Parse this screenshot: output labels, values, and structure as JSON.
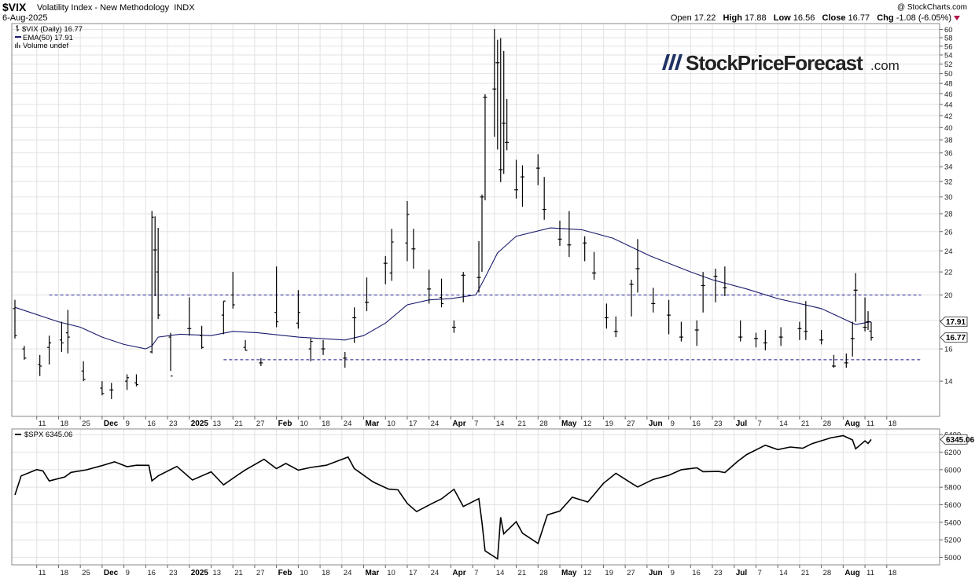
{
  "header": {
    "symbol": "$VIX",
    "name": "Volatility Index - New Methodology",
    "exchange": "INDX",
    "date": "6-Aug-2025",
    "credit": "@ StockCharts.com",
    "open_label": "Open",
    "open": "17.22",
    "high_label": "High",
    "high": "17.88",
    "low_label": "Low",
    "low": "16.56",
    "close_label": "Close",
    "close": "16.77",
    "chg_label": "Chg",
    "chg": "-1.08 (-6.05%)"
  },
  "legend": {
    "vix": "$VIX (Daily) 16.77",
    "ema": "EMA(50) 17.91",
    "volume": "Volume undef",
    "spx": "$SPX 6345.06"
  },
  "watermark": {
    "main": "StockPriceForecast",
    "suffix": ".com"
  },
  "colors": {
    "ema": "#1a1a6e",
    "bars": "#000000",
    "dashed": "#1a1a8e",
    "grid": "#e2e2e2",
    "down_triangle": "#b0154a"
  },
  "chart_data": [
    {
      "type": "ohlc",
      "title": "$VIX (Daily) 16.77",
      "ylim": [
        12.5,
        60.5
      ],
      "y_scale": "log",
      "y_ticks": [
        14,
        16,
        18,
        20,
        22,
        24,
        26,
        28,
        30,
        32,
        34,
        36,
        38,
        40,
        42,
        44,
        46,
        48,
        50,
        52,
        54,
        56,
        58,
        60
      ],
      "price_labels": [
        "17.91",
        "16.77"
      ],
      "horizontal_lines": [
        {
          "name": "resistance",
          "value": 20.0,
          "from": "2024-11-15",
          "to": "2025-08-22"
        },
        {
          "name": "support",
          "value": 15.3,
          "from": "2025-01-10",
          "to": "2025-08-22"
        }
      ],
      "ema_values": [
        [
          "2024-11-04",
          19.0
        ],
        [
          "2024-11-18",
          17.9
        ],
        [
          "2024-11-25",
          17.5
        ],
        [
          "2024-12-02",
          16.8
        ],
        [
          "2024-12-09",
          16.3
        ],
        [
          "2024-12-16",
          16.0
        ],
        [
          "2024-12-18",
          16.2
        ],
        [
          "2024-12-20",
          16.8
        ],
        [
          "2024-12-27",
          17.0
        ],
        [
          "2025-01-06",
          16.9
        ],
        [
          "2025-01-13",
          17.2
        ],
        [
          "2025-01-21",
          17.1
        ],
        [
          "2025-02-03",
          16.8
        ],
        [
          "2025-02-18",
          16.6
        ],
        [
          "2025-02-24",
          16.9
        ],
        [
          "2025-03-03",
          17.8
        ],
        [
          "2025-03-10",
          19.2
        ],
        [
          "2025-03-17",
          19.6
        ],
        [
          "2025-03-24",
          19.7
        ],
        [
          "2025-04-01",
          20.0
        ],
        [
          "2025-04-04",
          21.5
        ],
        [
          "2025-04-08",
          23.8
        ],
        [
          "2025-04-14",
          25.5
        ],
        [
          "2025-04-25",
          26.4
        ],
        [
          "2025-05-05",
          26.2
        ],
        [
          "2025-05-15",
          25.3
        ],
        [
          "2025-05-27",
          23.5
        ],
        [
          "2025-06-09",
          22.0
        ],
        [
          "2025-06-16",
          21.3
        ],
        [
          "2025-06-27",
          20.5
        ],
        [
          "2025-07-07",
          19.7
        ],
        [
          "2025-07-21",
          18.9
        ],
        [
          "2025-08-01",
          17.7
        ],
        [
          "2025-08-06",
          17.91
        ]
      ],
      "ohlc_values": [
        [
          "2024-11-04",
          18.9,
          19.6,
          16.7,
          16.9
        ],
        [
          "2024-11-07",
          16.0,
          16.2,
          15.3,
          15.4
        ],
        [
          "2024-11-12",
          15.0,
          15.6,
          14.3,
          14.9
        ],
        [
          "2024-11-15",
          16.1,
          16.9,
          15.0,
          16.4
        ],
        [
          "2024-11-19",
          16.6,
          17.9,
          15.8,
          16.4
        ],
        [
          "2024-11-21",
          17.1,
          18.8,
          15.7,
          16.8
        ],
        [
          "2024-11-26",
          14.6,
          15.2,
          14.0,
          14.1
        ],
        [
          "2024-12-02",
          13.6,
          14.0,
          13.2,
          13.3
        ],
        [
          "2024-12-05",
          13.5,
          13.9,
          13.0,
          13.5
        ],
        [
          "2024-12-10",
          14.0,
          14.4,
          13.5,
          14.2
        ],
        [
          "2024-12-13",
          13.9,
          14.4,
          13.7,
          13.8
        ],
        [
          "2024-12-18",
          15.8,
          28.3,
          15.7,
          27.6
        ],
        [
          "2024-12-19",
          24.1,
          27.7,
          19.9,
          24.1
        ],
        [
          "2024-12-20",
          22.0,
          26.4,
          18.1,
          18.4
        ],
        [
          "2024-12-24",
          16.8,
          17.1,
          14.6,
          14.3
        ],
        [
          "2024-12-30",
          17.4,
          19.8,
          16.9,
          17.4
        ],
        [
          "2025-01-03",
          16.9,
          17.6,
          16.0,
          16.1
        ],
        [
          "2025-01-10",
          18.4,
          19.5,
          17.0,
          19.5
        ],
        [
          "2025-01-13",
          20.0,
          22.0,
          18.9,
          19.2
        ],
        [
          "2025-01-17",
          16.1,
          16.6,
          15.9,
          15.9
        ],
        [
          "2025-01-22",
          15.1,
          15.4,
          14.9,
          15.1
        ],
        [
          "2025-01-27",
          18.6,
          22.5,
          17.5,
          17.9
        ],
        [
          "2025-02-03",
          17.8,
          20.4,
          17.4,
          18.6
        ],
        [
          "2025-02-07",
          16.0,
          16.7,
          15.2,
          16.5
        ],
        [
          "2025-02-11",
          16.0,
          16.6,
          15.6,
          16.0
        ],
        [
          "2025-02-18",
          15.4,
          15.8,
          14.8,
          15.4
        ],
        [
          "2025-02-21",
          18.2,
          19.0,
          16.4,
          18.2
        ],
        [
          "2025-02-25",
          19.4,
          21.5,
          18.7,
          19.4
        ],
        [
          "2025-03-03",
          22.8,
          23.5,
          20.9,
          22.8
        ],
        [
          "2025-03-05",
          21.9,
          26.3,
          21.2,
          24.9
        ],
        [
          "2025-03-10",
          24.8,
          29.5,
          23.0,
          27.9
        ],
        [
          "2025-03-12",
          24.2,
          26.3,
          22.3,
          24.2
        ],
        [
          "2025-03-17",
          20.5,
          22.2,
          19.3,
          20.5
        ],
        [
          "2025-03-21",
          19.8,
          21.4,
          19.0,
          19.3
        ],
        [
          "2025-03-25",
          17.5,
          18.0,
          17.1,
          17.5
        ],
        [
          "2025-03-28",
          21.7,
          22.0,
          19.4,
          21.7
        ],
        [
          "2025-04-02",
          21.5,
          25.0,
          20.2,
          21.5
        ],
        [
          "2025-04-03",
          30.0,
          30.3,
          22.0,
          30.0
        ],
        [
          "2025-04-04",
          45.3,
          45.9,
          29.6,
          45.3
        ],
        [
          "2025-04-07",
          46.9,
          60.1,
          38.5,
          46.9
        ],
        [
          "2025-04-08",
          52.3,
          57.5,
          36.5,
          52.3
        ],
        [
          "2025-04-09",
          33.6,
          57.9,
          31.9,
          33.6
        ],
        [
          "2025-04-10",
          40.7,
          54.9,
          33.0,
          40.7
        ],
        [
          "2025-04-11",
          37.6,
          45.0,
          36.4,
          37.6
        ],
        [
          "2025-04-14",
          30.9,
          35.0,
          29.8,
          30.9
        ],
        [
          "2025-04-16",
          32.6,
          34.2,
          28.8,
          32.6
        ],
        [
          "2025-04-21",
          33.8,
          35.8,
          31.5,
          33.8
        ],
        [
          "2025-04-23",
          28.5,
          32.6,
          27.3,
          28.5
        ],
        [
          "2025-04-28",
          25.2,
          27.2,
          24.5,
          25.2
        ],
        [
          "2025-05-01",
          24.6,
          28.3,
          23.4,
          24.6
        ],
        [
          "2025-05-06",
          24.8,
          25.5,
          23.0,
          24.8
        ],
        [
          "2025-05-09",
          21.9,
          23.9,
          21.3,
          21.9
        ],
        [
          "2025-05-13",
          18.2,
          19.3,
          17.4,
          18.2
        ],
        [
          "2025-05-16",
          17.2,
          18.3,
          16.8,
          17.2
        ],
        [
          "2025-05-21",
          20.9,
          21.3,
          18.3,
          20.9
        ],
        [
          "2025-05-23",
          22.3,
          25.2,
          20.2,
          22.3
        ],
        [
          "2025-05-28",
          19.3,
          20.6,
          18.6,
          19.3
        ],
        [
          "2025-06-02",
          18.4,
          19.6,
          17.0,
          18.4
        ],
        [
          "2025-06-06",
          16.8,
          17.9,
          16.5,
          16.8
        ],
        [
          "2025-06-11",
          17.3,
          18.0,
          16.2,
          17.3
        ],
        [
          "2025-06-13",
          20.8,
          22.0,
          18.6,
          20.8
        ],
        [
          "2025-06-17",
          21.6,
          22.3,
          19.4,
          21.6
        ],
        [
          "2025-06-20",
          20.6,
          22.5,
          19.9,
          20.6
        ],
        [
          "2025-06-25",
          16.8,
          18.0,
          16.5,
          16.8
        ],
        [
          "2025-06-30",
          16.7,
          17.1,
          16.1,
          16.7
        ],
        [
          "2025-07-03",
          16.4,
          17.3,
          15.9,
          16.4
        ],
        [
          "2025-07-08",
          16.8,
          17.5,
          16.2,
          16.8
        ],
        [
          "2025-07-14",
          17.4,
          17.9,
          16.6,
          17.4
        ],
        [
          "2025-07-16",
          17.2,
          19.5,
          16.6,
          17.2
        ],
        [
          "2025-07-21",
          16.6,
          17.3,
          16.3,
          16.6
        ],
        [
          "2025-07-25",
          14.9,
          15.6,
          14.8,
          14.9
        ],
        [
          "2025-07-29",
          15.1,
          15.7,
          14.8,
          15.1
        ],
        [
          "2025-07-31",
          16.7,
          17.9,
          15.5,
          16.7
        ],
        [
          "2025-08-01",
          20.4,
          21.9,
          17.9,
          20.4
        ],
        [
          "2025-08-04",
          17.5,
          19.8,
          17.2,
          17.5
        ],
        [
          "2025-08-05",
          17.9,
          18.7,
          17.3,
          17.9
        ],
        [
          "2025-08-06",
          17.22,
          17.88,
          16.56,
          16.77
        ]
      ],
      "x_tick_labels": [
        "11",
        "18",
        "25",
        "Dec",
        "9",
        "16",
        "23",
        "2025",
        "13",
        "21",
        "27",
        "Feb",
        "10",
        "18",
        "24",
        "Mar",
        "10",
        "17",
        "24",
        "Apr",
        "7",
        "14",
        "21",
        "28",
        "May",
        "12",
        "19",
        "27",
        "Jun",
        "9",
        "16",
        "23",
        "Jul",
        "7",
        "14",
        "21",
        "28",
        "Aug",
        "11",
        "18"
      ]
    },
    {
      "type": "line",
      "title": "$SPX 6345.06",
      "ylim": [
        4950,
        6420
      ],
      "y_ticks": [
        5000,
        5200,
        5400,
        5600,
        5800,
        6000,
        6200,
        6400
      ],
      "price_label": "6345.06",
      "values": [
        [
          "2024-11-04",
          5712
        ],
        [
          "2024-11-06",
          5929
        ],
        [
          "2024-11-11",
          6001
        ],
        [
          "2024-11-13",
          5985
        ],
        [
          "2024-11-15",
          5871
        ],
        [
          "2024-11-20",
          5917
        ],
        [
          "2024-11-22",
          5969
        ],
        [
          "2024-11-27",
          5999
        ],
        [
          "2024-12-02",
          6047
        ],
        [
          "2024-12-06",
          6090
        ],
        [
          "2024-12-10",
          6035
        ],
        [
          "2024-12-13",
          6051
        ],
        [
          "2024-12-17",
          6050
        ],
        [
          "2024-12-18",
          5872
        ],
        [
          "2024-12-20",
          5930
        ],
        [
          "2024-12-26",
          6037
        ],
        [
          "2024-12-31",
          5882
        ],
        [
          "2025-01-06",
          5975
        ],
        [
          "2025-01-10",
          5827
        ],
        [
          "2025-01-15",
          5950
        ],
        [
          "2025-01-17",
          5997
        ],
        [
          "2025-01-23",
          6119
        ],
        [
          "2025-01-27",
          6012
        ],
        [
          "2025-01-30",
          6071
        ],
        [
          "2025-02-03",
          5995
        ],
        [
          "2025-02-07",
          6026
        ],
        [
          "2025-02-12",
          6051
        ],
        [
          "2025-02-19",
          6144
        ],
        [
          "2025-02-21",
          6013
        ],
        [
          "2025-02-27",
          5861
        ],
        [
          "2025-03-04",
          5778
        ],
        [
          "2025-03-07",
          5770
        ],
        [
          "2025-03-10",
          5614
        ],
        [
          "2025-03-13",
          5522
        ],
        [
          "2025-03-18",
          5615
        ],
        [
          "2025-03-21",
          5667
        ],
        [
          "2025-03-25",
          5776
        ],
        [
          "2025-03-28",
          5580
        ],
        [
          "2025-04-02",
          5670
        ],
        [
          "2025-04-03",
          5396
        ],
        [
          "2025-04-04",
          5074
        ],
        [
          "2025-04-08",
          4982
        ],
        [
          "2025-04-09",
          5457
        ],
        [
          "2025-04-10",
          5268
        ],
        [
          "2025-04-14",
          5406
        ],
        [
          "2025-04-16",
          5275
        ],
        [
          "2025-04-21",
          5158
        ],
        [
          "2025-04-24",
          5484
        ],
        [
          "2025-04-28",
          5528
        ],
        [
          "2025-05-02",
          5686
        ],
        [
          "2025-05-07",
          5631
        ],
        [
          "2025-05-12",
          5844
        ],
        [
          "2025-05-16",
          5958
        ],
        [
          "2025-05-21",
          5845
        ],
        [
          "2025-05-23",
          5802
        ],
        [
          "2025-05-28",
          5889
        ],
        [
          "2025-06-02",
          5936
        ],
        [
          "2025-06-06",
          6000
        ],
        [
          "2025-06-11",
          6022
        ],
        [
          "2025-06-13",
          5977
        ],
        [
          "2025-06-18",
          5980
        ],
        [
          "2025-06-20",
          5967
        ],
        [
          "2025-06-24",
          6092
        ],
        [
          "2025-06-27",
          6173
        ],
        [
          "2025-07-03",
          6279
        ],
        [
          "2025-07-07",
          6229
        ],
        [
          "2025-07-11",
          6259
        ],
        [
          "2025-07-15",
          6244
        ],
        [
          "2025-07-18",
          6297
        ],
        [
          "2025-07-24",
          6363
        ],
        [
          "2025-07-28",
          6389
        ],
        [
          "2025-07-31",
          6339
        ],
        [
          "2025-08-01",
          6238
        ],
        [
          "2025-08-04",
          6329
        ],
        [
          "2025-08-05",
          6299
        ],
        [
          "2025-08-06",
          6345.06
        ]
      ],
      "x_tick_labels": [
        "11",
        "18",
        "25",
        "Dec",
        "9",
        "16",
        "23",
        "2025",
        "13",
        "21",
        "27",
        "Feb",
        "10",
        "18",
        "24",
        "Mar",
        "10",
        "17",
        "24",
        "Apr",
        "7",
        "14",
        "21",
        "28",
        "May",
        "12",
        "19",
        "27",
        "Jun",
        "9",
        "16",
        "23",
        "Jul",
        "7",
        "14",
        "21",
        "28",
        "Aug",
        "11",
        "18"
      ]
    }
  ]
}
